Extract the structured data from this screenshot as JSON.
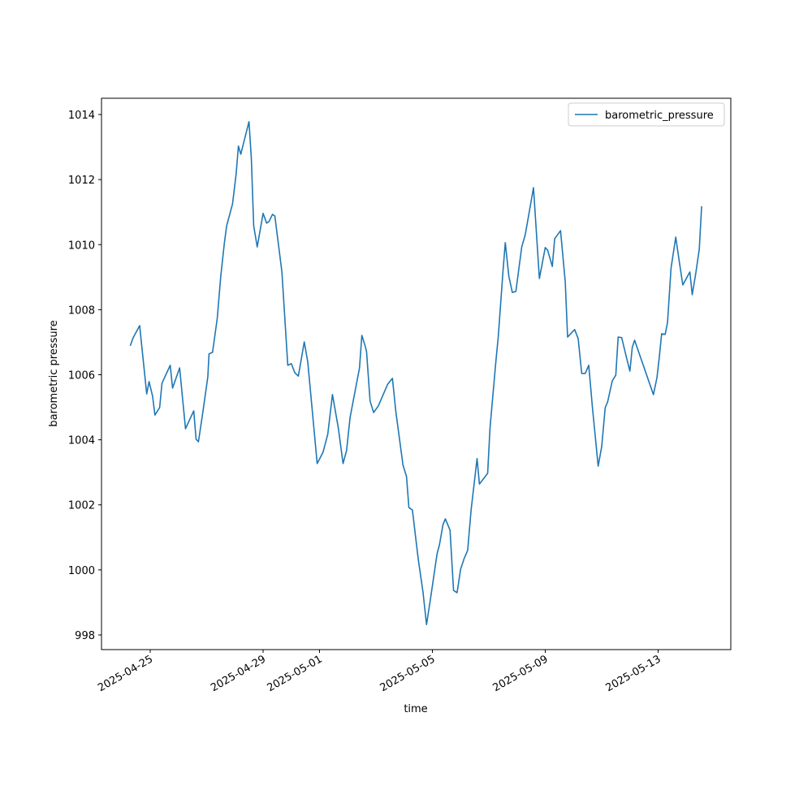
{
  "chart_data": {
    "type": "line",
    "x_label": "time",
    "y_label": "barometric pressure",
    "x": [
      "2025-04-24 07:00",
      "2025-04-24 09:30",
      "2025-04-24 15:00",
      "2025-04-24 21:00",
      "2025-04-24 23:00",
      "2025-04-25 02:00",
      "2025-04-25 04:00",
      "2025-04-25 08:00",
      "2025-04-25 10:00",
      "2025-04-25 17:00",
      "2025-04-25 19:00",
      "2025-04-26 01:00",
      "2025-04-26 06:00",
      "2025-04-26 13:00",
      "2025-04-26 15:00",
      "2025-04-26 17:00",
      "2025-04-26 21:00",
      "2025-04-27 01:00",
      "2025-04-27 02:00",
      "2025-04-27 05:00",
      "2025-04-27 09:00",
      "2025-04-27 12:00",
      "2025-04-27 15:00",
      "2025-04-27 17:00",
      "2025-04-27 22:00",
      "2025-04-28 01:00",
      "2025-04-28 03:00",
      "2025-04-28 05:00",
      "2025-04-28 12:00",
      "2025-04-28 14:00",
      "2025-04-28 16:00",
      "2025-04-28 19:00",
      "2025-04-29 00:00",
      "2025-04-29 03:00",
      "2025-04-29 05:00",
      "2025-04-29 08:00",
      "2025-04-29 10:00",
      "2025-04-29 16:00",
      "2025-04-29 21:00",
      "2025-04-30 00:00",
      "2025-04-30 03:00",
      "2025-04-30 06:00",
      "2025-04-30 11:00",
      "2025-04-30 14:00",
      "2025-04-30 22:00",
      "2025-05-01 03:00",
      "2025-05-01 07:00",
      "2025-05-01 11:00",
      "2025-05-01 16:00",
      "2025-05-01 20:00",
      "2025-05-01 23:00",
      "2025-05-02 02:00",
      "2025-05-02 10:00",
      "2025-05-02 12:00",
      "2025-05-02 15:00",
      "2025-05-02 16:00",
      "2025-05-02 19:00",
      "2025-05-02 22:00",
      "2025-05-03 02:00",
      "2025-05-03 10:00",
      "2025-05-03 14:00",
      "2025-05-03 17:00",
      "2025-05-03 23:00",
      "2025-05-04 02:00",
      "2025-05-04 04:00",
      "2025-05-04 07:00",
      "2025-05-04 12:00",
      "2025-05-04 16:00",
      "2025-05-04 19:00",
      "2025-05-04 22:00",
      "2025-05-05 04:00",
      "2025-05-05 06:00",
      "2025-05-05 09:00",
      "2025-05-05 11:00",
      "2025-05-05 15:00",
      "2025-05-05 18:00",
      "2025-05-05 21:00",
      "2025-05-06 00:00",
      "2025-05-06 03:00",
      "2025-05-06 06:00",
      "2025-05-06 09:00",
      "2025-05-06 14:00",
      "2025-05-06 16:00",
      "2025-05-06 23:00",
      "2025-05-07 01:00",
      "2025-05-07 06:00",
      "2025-05-07 08:00",
      "2025-05-07 12:00",
      "2025-05-07 14:00",
      "2025-05-07 17:00",
      "2025-05-07 20:00",
      "2025-05-07 23:00",
      "2025-05-08 04:00",
      "2025-05-08 07:00",
      "2025-05-08 14:00",
      "2025-05-08 19:00",
      "2025-05-09 00:00",
      "2025-05-09 02:00",
      "2025-05-09 06:00",
      "2025-05-09 08:00",
      "2025-05-09 13:00",
      "2025-05-09 17:00",
      "2025-05-09 19:00",
      "2025-05-10 01:00",
      "2025-05-10 04:00",
      "2025-05-10 07:00",
      "2025-05-10 10:00",
      "2025-05-10 13:00",
      "2025-05-10 16:00",
      "2025-05-10 21:00",
      "2025-05-11 00:00",
      "2025-05-11 03:00",
      "2025-05-11 05:00",
      "2025-05-11 09:00",
      "2025-05-11 12:00",
      "2025-05-11 14:00",
      "2025-05-11 17:00",
      "2025-05-11 21:00",
      "2025-05-12 00:00",
      "2025-05-12 02:00",
      "2025-05-12 04:00",
      "2025-05-12 20:00",
      "2025-05-12 23:00",
      "2025-05-13 01:00",
      "2025-05-13 03:00",
      "2025-05-13 06:00",
      "2025-05-13 08:00",
      "2025-05-13 11:00",
      "2025-05-13 15:00",
      "2025-05-13 18:00",
      "2025-05-13 21:00",
      "2025-05-14 03:00",
      "2025-05-14 05:00",
      "2025-05-14 08:00",
      "2025-05-14 11:00",
      "2025-05-14 13:00"
    ],
    "series": [
      {
        "name": "barometric_pressure",
        "color": "#1f77b4",
        "values": [
          1006.89,
          1007.14,
          1007.51,
          1005.41,
          1005.79,
          1005.34,
          1004.76,
          1004.99,
          1005.74,
          1006.29,
          1005.59,
          1006.21,
          1004.34,
          1004.89,
          1004.02,
          1003.94,
          1004.91,
          1005.94,
          1006.64,
          1006.69,
          1007.73,
          1009.03,
          1010.03,
          1010.58,
          1011.25,
          1012.15,
          1013.03,
          1012.78,
          1013.78,
          1012.65,
          1010.58,
          1009.93,
          1010.96,
          1010.66,
          1010.71,
          1010.93,
          1010.88,
          1009.16,
          1006.29,
          1006.34,
          1006.06,
          1005.96,
          1007.01,
          1006.39,
          1003.27,
          1003.62,
          1004.17,
          1005.39,
          1004.36,
          1003.27,
          1003.67,
          1004.69,
          1006.21,
          1007.21,
          1006.86,
          1006.71,
          1005.19,
          1004.84,
          1005.04,
          1005.71,
          1005.89,
          1004.84,
          1003.22,
          1002.87,
          1001.92,
          1001.84,
          1000.32,
          999.32,
          998.32,
          999.02,
          1000.5,
          1000.77,
          1001.39,
          1001.57,
          1001.22,
          999.37,
          999.3,
          1000.02,
          1000.35,
          1000.6,
          1001.87,
          1003.42,
          1002.64,
          1002.97,
          1004.36,
          1006.41,
          1007.16,
          1009.16,
          1010.06,
          1009.03,
          1008.53,
          1008.56,
          1009.93,
          1010.31,
          1011.75,
          1008.96,
          1009.91,
          1009.83,
          1009.33,
          1010.18,
          1010.43,
          1008.86,
          1007.16,
          1007.39,
          1007.11,
          1006.04,
          1006.04,
          1006.29,
          1005.04,
          1003.19,
          1003.79,
          1004.99,
          1005.16,
          1005.81,
          1005.99,
          1007.16,
          1007.14,
          1006.54,
          1006.11,
          1006.84,
          1007.06,
          1005.39,
          1005.91,
          1006.54,
          1007.26,
          1007.24,
          1007.61,
          1009.28,
          1010.23,
          1009.48,
          1008.76,
          1009.16,
          1008.46,
          1009.11,
          1009.86,
          1011.18
        ]
      }
    ],
    "xlim": [
      "2025-04-23 06:33",
      "2025-05-15 13:49"
    ],
    "xticks": [
      "2025-04-25",
      "2025-04-29",
      "2025-05-01",
      "2025-05-05",
      "2025-05-09",
      "2025-05-13"
    ],
    "ylim": [
      997.55,
      1014.5
    ],
    "yticks": [
      998,
      1000,
      1002,
      1004,
      1006,
      1008,
      1010,
      1012,
      1014
    ],
    "grid": false,
    "legend": "upper right"
  }
}
